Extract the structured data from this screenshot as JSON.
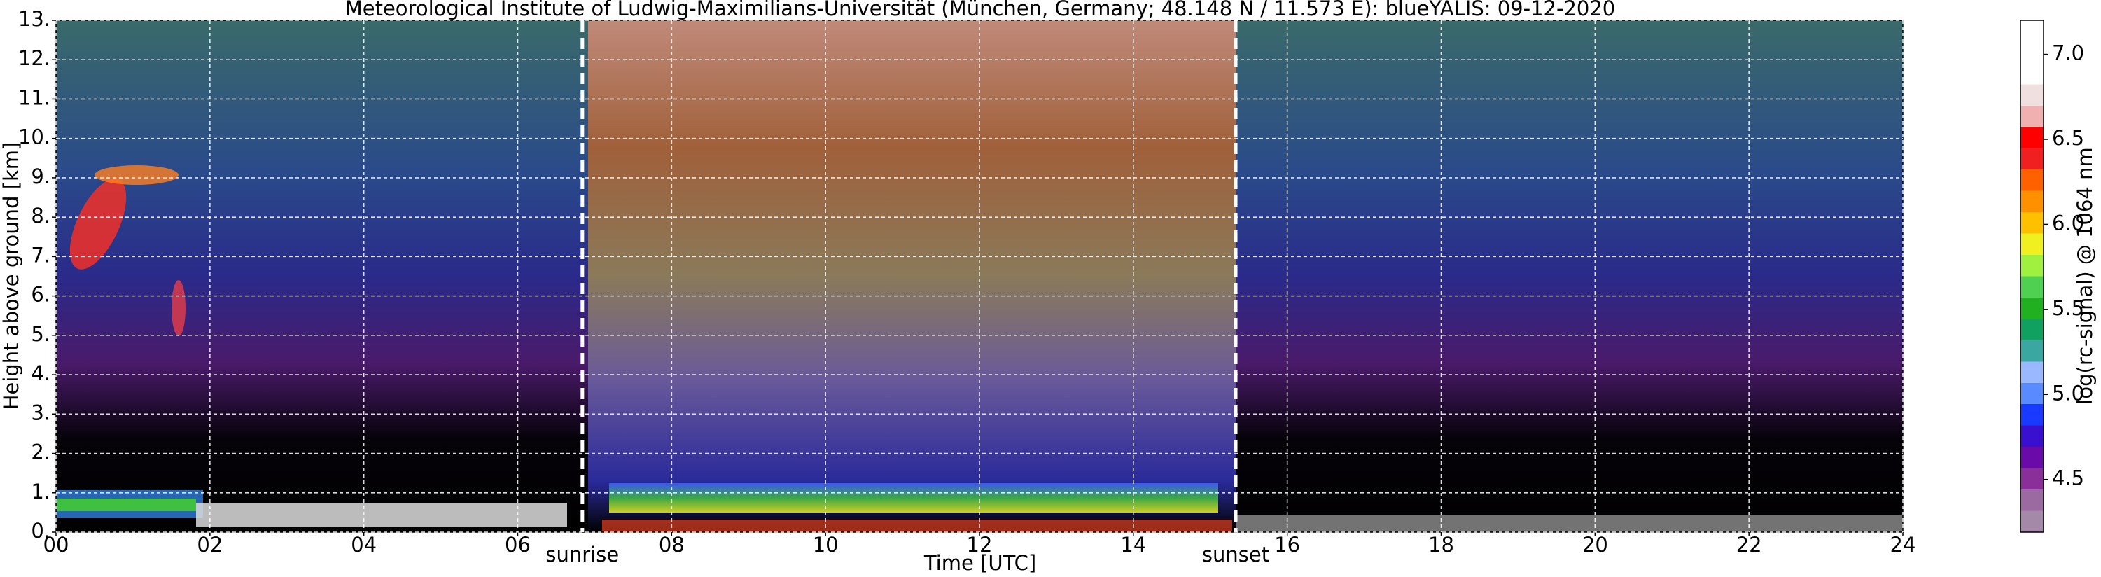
{
  "chart_data": {
    "type": "heatmap",
    "title": "Meteorological Institute of Ludwig-Maximilians-Universität (München, Germany; 48.148 N / 11.573 E):    blueYALIS: 09-12-2020",
    "x_label": "Time [UTC]",
    "y_label": "Height above ground [km]",
    "xlim": [
      0,
      24
    ],
    "xticks": [
      {
        "value": 0,
        "label": "00"
      },
      {
        "value": 2,
        "label": "02"
      },
      {
        "value": 4,
        "label": "04"
      },
      {
        "value": 6,
        "label": "06"
      },
      {
        "value": 8,
        "label": "08"
      },
      10,
      12,
      14,
      16,
      18,
      20,
      22,
      24
    ],
    "ylim": [
      0,
      13
    ],
    "yticks": [
      {
        "value": 0,
        "label": "0."
      },
      {
        "value": 1,
        "label": "1."
      },
      {
        "value": 2,
        "label": "2."
      },
      {
        "value": 3,
        "label": "3."
      },
      {
        "value": 4,
        "label": "4."
      },
      {
        "value": 5,
        "label": "5."
      },
      {
        "value": 6,
        "label": "6."
      },
      {
        "value": 7,
        "label": "7."
      },
      {
        "value": 8,
        "label": "8."
      },
      {
        "value": 9,
        "label": "9."
      },
      {
        "value": 10,
        "label": "10."
      },
      {
        "value": 11,
        "label": "11."
      },
      {
        "value": 12,
        "label": "12."
      },
      {
        "value": 13,
        "label": "13."
      }
    ],
    "grid": true,
    "annotations": [
      {
        "label": "sunrise",
        "x": 6.84
      },
      {
        "label": "sunset",
        "x": 15.33
      }
    ],
    "colorbar": {
      "label": "log(rc-signal) @ 1064 nm",
      "lim": [
        4.19,
        7.2
      ],
      "ticks": [
        4.5,
        {
          "value": 5,
          "label": "5.0"
        },
        5.5,
        {
          "value": 6,
          "label": "6.0"
        },
        6.5,
        {
          "value": 7,
          "label": "7.0"
        }
      ],
      "colormap": [
        "#a48aa8",
        "#9a6aa0",
        "#8a2f9a",
        "#6a0aa8",
        "#3a10d0",
        "#1a3aff",
        "#5a8aff",
        "#9ab8ff",
        "#3aa8a0",
        "#10a060",
        "#20b020",
        "#50d050",
        "#a0f040",
        "#f0f020",
        "#ffc000",
        "#ff9000",
        "#ff6000",
        "#f02020",
        "#ff0000",
        "#f0b0b0",
        "#f0e0e0",
        "#ffffff",
        "#ffffff",
        "#ffffff"
      ]
    }
  }
}
